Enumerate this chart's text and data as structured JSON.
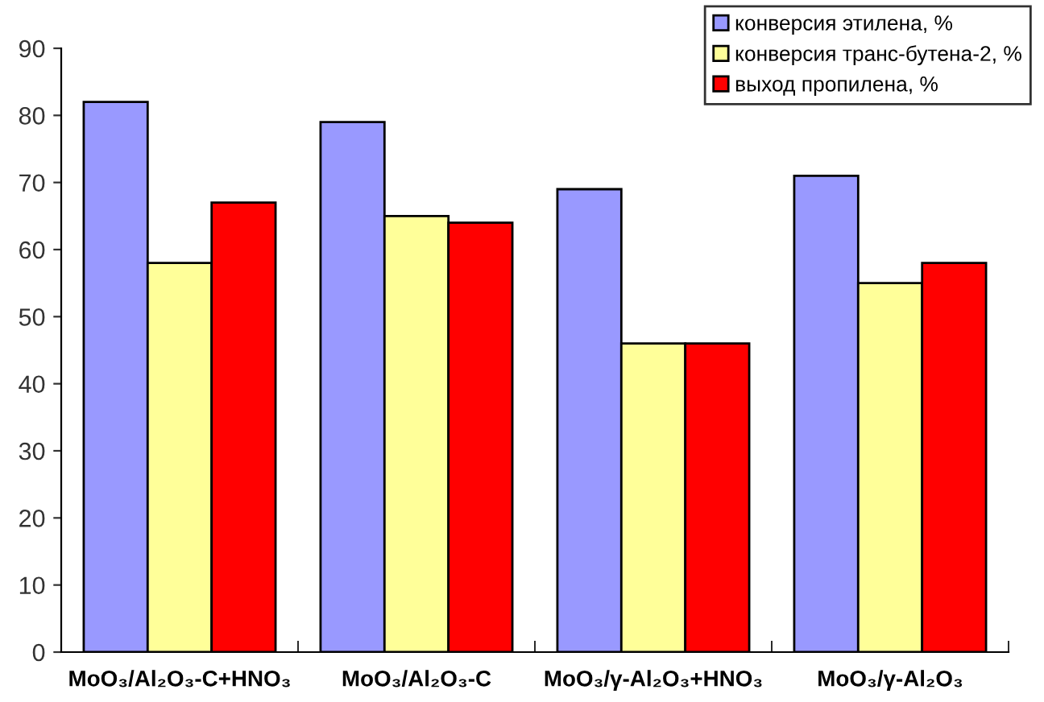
{
  "chart_data": {
    "type": "bar",
    "categories": [
      "MoO₃/Al₂O₃-C+HNO₃",
      "MoO₃/Al₂O₃-C",
      "MoO₃/γ-Al₂O₃+HNO₃",
      "MoO₃/γ-Al₂O₃"
    ],
    "series": [
      {
        "name": "конверсия этилена, %",
        "color": "#9999ff",
        "values": [
          82,
          79,
          69,
          71
        ]
      },
      {
        "name": "конверсия транс-бутена-2, %",
        "color": "#ffff99",
        "values": [
          58,
          65,
          46,
          55
        ]
      },
      {
        "name": "выход пропилена, %",
        "color": "#ff0000",
        "values": [
          67,
          64,
          46,
          58
        ]
      }
    ],
    "ylim": [
      0,
      90
    ],
    "yticks": [
      0,
      10,
      20,
      30,
      40,
      50,
      60,
      70,
      80,
      90
    ],
    "grid": false,
    "legend": "top right"
  }
}
